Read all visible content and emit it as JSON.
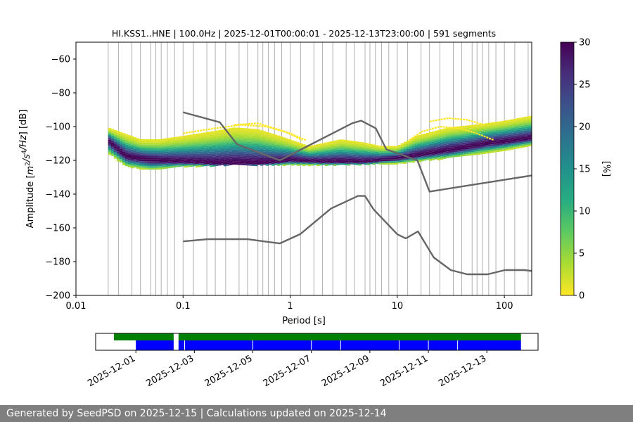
{
  "chart_data": {
    "type": "heatmap",
    "title": "HI.KSS1..HNE | 100.0Hz | 2025-12-01T00:00:01 - 2025-12-13T23:00:00 | 591 segments",
    "xlabel": "Period [s]",
    "ylabel": "Amplitude [m²/s⁴/Hz] [dB]",
    "x_scale": "log",
    "xlim": [
      0.01,
      180
    ],
    "ylim": [
      -200,
      -50
    ],
    "x_ticks": [
      {
        "v": 0.01,
        "label": "0.01"
      },
      {
        "v": 0.1,
        "label": "0.1"
      },
      {
        "v": 1,
        "label": "1"
      },
      {
        "v": 10,
        "label": "10"
      },
      {
        "v": 100,
        "label": "100"
      }
    ],
    "y_ticks": [
      {
        "v": -60,
        "label": "−60"
      },
      {
        "v": -80,
        "label": "−80"
      },
      {
        "v": -100,
        "label": "−100"
      },
      {
        "v": -120,
        "label": "−120"
      },
      {
        "v": -140,
        "label": "−140"
      },
      {
        "v": -160,
        "label": "−160"
      },
      {
        "v": -180,
        "label": "−180"
      },
      {
        "v": -200,
        "label": "−200"
      }
    ],
    "period_gridlines": [
      0.02,
      0.025,
      0.0333,
      0.04,
      0.05,
      0.0556,
      0.0625,
      0.0714,
      0.0833,
      0.1,
      0.125,
      0.1667,
      0.2,
      0.25,
      0.3333,
      0.4,
      0.5,
      0.5556,
      0.625,
      0.7143,
      0.8333,
      1,
      1.25,
      1.6667,
      2,
      2.5,
      3.3333,
      4,
      5,
      5.5556,
      6.25,
      7.1429,
      8.3333,
      10,
      12.5,
      16.6667,
      20,
      25,
      33.3333,
      40,
      50,
      55.5556,
      62.5,
      71.4286,
      83.3333,
      100,
      125,
      166.6667
    ],
    "grid": "x",
    "colorbar": {
      "label": "[%]",
      "min": 0,
      "max": 30,
      "ticks": [
        {
          "v": 0,
          "label": "0"
        },
        {
          "v": 5,
          "label": "5"
        },
        {
          "v": 10,
          "label": "10"
        },
        {
          "v": 15,
          "label": "15"
        },
        {
          "v": 20,
          "label": "20"
        },
        {
          "v": 25,
          "label": "25"
        },
        {
          "v": 30,
          "label": "30"
        }
      ]
    },
    "pdf_mode_curve": [
      [
        0.02,
        -108
      ],
      [
        0.025,
        -114
      ],
      [
        0.03,
        -118
      ],
      [
        0.05,
        -120
      ],
      [
        0.1,
        -121
      ],
      [
        0.2,
        -122
      ],
      [
        0.5,
        -122
      ],
      [
        0.8,
        -121
      ],
      [
        1,
        -120
      ],
      [
        2,
        -121
      ],
      [
        5,
        -121
      ],
      [
        10,
        -119
      ],
      [
        20,
        -116
      ],
      [
        40,
        -113
      ],
      [
        70,
        -110
      ],
      [
        100,
        -109
      ],
      [
        180,
        -107
      ]
    ],
    "pdf_spread_low": [
      [
        0.02,
        -116
      ],
      [
        0.03,
        -124
      ],
      [
        0.05,
        -126
      ],
      [
        0.1,
        -124
      ],
      [
        0.3,
        -123
      ],
      [
        1,
        -123
      ],
      [
        3,
        -123
      ],
      [
        10,
        -122
      ],
      [
        30,
        -119
      ],
      [
        100,
        -114
      ],
      [
        180,
        -111
      ]
    ],
    "pdf_spread_high": [
      [
        0.02,
        -101
      ],
      [
        0.04,
        -108
      ],
      [
        0.06,
        -108
      ],
      [
        0.1,
        -106
      ],
      [
        0.2,
        -103
      ],
      [
        0.3,
        -101
      ],
      [
        0.5,
        -102
      ],
      [
        0.8,
        -106
      ],
      [
        1.5,
        -112
      ],
      [
        3,
        -108
      ],
      [
        5,
        -110
      ],
      [
        7,
        -112
      ],
      [
        10,
        -112
      ],
      [
        15,
        -106
      ],
      [
        30,
        -101
      ],
      [
        60,
        -99
      ],
      [
        100,
        -97
      ],
      [
        180,
        -94
      ]
    ],
    "pdf_outlier_arcs": [
      [
        [
          0.1,
          -104
        ],
        [
          0.2,
          -101
        ],
        [
          0.35,
          -99
        ],
        [
          0.6,
          -100
        ],
        [
          1,
          -104
        ],
        [
          1.4,
          -108
        ]
      ],
      [
        [
          0.3,
          -99
        ],
        [
          0.5,
          -98
        ],
        [
          0.9,
          -103
        ],
        [
          1.3,
          -108
        ]
      ],
      [
        [
          13,
          -108
        ],
        [
          17,
          -103
        ],
        [
          25,
          -100
        ],
        [
          38,
          -101
        ],
        [
          55,
          -104
        ],
        [
          80,
          -108
        ]
      ],
      [
        [
          20,
          -97
        ],
        [
          30,
          -95
        ],
        [
          45,
          -96
        ],
        [
          65,
          -99
        ]
      ]
    ],
    "noise_model_high": [
      [
        0.1,
        -91.5
      ],
      [
        0.22,
        -97.4
      ],
      [
        0.32,
        -110.5
      ],
      [
        0.8,
        -120
      ],
      [
        3.8,
        -98
      ],
      [
        4.6,
        -96.5
      ],
      [
        6.3,
        -101
      ],
      [
        7.9,
        -113.5
      ],
      [
        15.4,
        -120
      ],
      [
        20,
        -138.5
      ],
      [
        354.8,
        -126
      ]
    ],
    "noise_model_low": [
      [
        0.1,
        -168
      ],
      [
        0.17,
        -166.7
      ],
      [
        0.4,
        -166.7
      ],
      [
        0.8,
        -169.2
      ],
      [
        1.24,
        -163.7
      ],
      [
        2.4,
        -148.6
      ],
      [
        4.3,
        -141.1
      ],
      [
        5,
        -141.1
      ],
      [
        6,
        -149
      ],
      [
        10,
        -163.8
      ],
      [
        12,
        -166.2
      ],
      [
        15.6,
        -162.1
      ],
      [
        21.9,
        -177.5
      ],
      [
        31.6,
        -185
      ],
      [
        45,
        -187.5
      ],
      [
        70,
        -187.5
      ],
      [
        101,
        -185
      ],
      [
        154,
        -185
      ],
      [
        328,
        -187.5
      ]
    ],
    "availability": {
      "x_ticks": [
        {
          "v": "2025-12-01",
          "label": "2025-12-01"
        },
        {
          "v": "2025-12-03",
          "label": "2025-12-03"
        },
        {
          "v": "2025-12-05",
          "label": "2025-12-05"
        },
        {
          "v": "2025-12-07",
          "label": "2025-12-07"
        },
        {
          "v": "2025-12-09",
          "label": "2025-12-09"
        },
        {
          "v": "2025-12-11",
          "label": "2025-12-11"
        },
        {
          "v": "2025-12-13",
          "label": "2025-12-13"
        }
      ],
      "xlim": [
        "2025-11-29T15:00",
        "2025-12-14T18:00"
      ],
      "data_segments": [
        [
          "2025-11-30T06:00",
          "2025-12-02T07:00"
        ],
        [
          "2025-12-02T11:00",
          "2025-12-14T04:00"
        ]
      ],
      "psd_segments": [
        [
          "2025-12-01T00:00",
          "2025-12-02T07:00"
        ],
        [
          "2025-12-02T11:00",
          "2025-12-14T04:00"
        ]
      ],
      "psd_gaps": [
        "2025-12-02T16:00",
        "2025-12-05T00:00",
        "2025-12-07T00:00",
        "2025-12-08T00:00",
        "2025-12-10T00:00",
        "2025-12-11T00:00",
        "2025-12-12T00:00"
      ],
      "data_color": "#008000",
      "psd_color": "#0000ff"
    }
  },
  "footer": "Generated by SeedPSD on 2025-12-15 | Calculations updated on 2025-12-14"
}
